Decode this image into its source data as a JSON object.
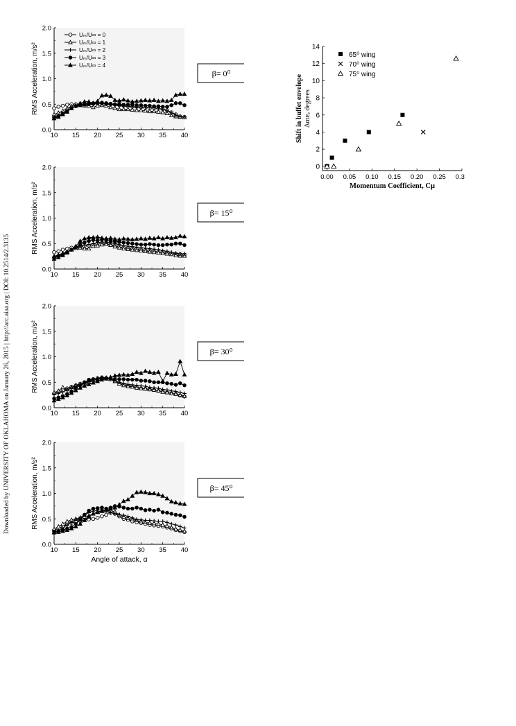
{
  "side_note": "Downloaded by UNIVERSITY OF OKLAHOMA on January 26, 2015 | http://arc.aiaa.org | DOI: 10.2514/2.3135",
  "legend_left": {
    "items": [
      {
        "label": "Uₘ/U∞ = 0",
        "marker": "open-circle"
      },
      {
        "label": "Uₘ/U∞ = 1",
        "marker": "open-triangle"
      },
      {
        "label": "Uₘ/U∞ = 2",
        "marker": "plus"
      },
      {
        "label": "Uₘ/U∞ = 3",
        "marker": "filled-circle"
      },
      {
        "label": "Uₘ/U∞ = 4",
        "marker": "filled-triangle"
      }
    ]
  },
  "panels": [
    {
      "beta": "β= 0⁰"
    },
    {
      "beta": "β= 15⁰"
    },
    {
      "beta": "β= 30⁰"
    },
    {
      "beta": "β= 45⁰"
    }
  ],
  "colors": {
    "ink": "#000000",
    "background": "#ffffff",
    "grid_bg": "#f4f4f4"
  },
  "chart_data": [
    {
      "type": "line",
      "panel": "β= 0⁰",
      "ylabel": "RMS Acceleration, m/s²",
      "xlabel": "",
      "xlim": [
        10,
        40
      ],
      "ylim": [
        0,
        2.0
      ],
      "xticks": [
        10,
        15,
        20,
        25,
        30,
        35,
        40
      ],
      "yticks": [
        "0.0",
        "0.5",
        "1.0",
        "1.5",
        "2.0"
      ],
      "x": [
        10,
        11,
        12,
        13,
        14,
        15,
        16,
        17,
        18,
        19,
        20,
        21,
        22,
        23,
        24,
        25,
        26,
        27,
        28,
        29,
        30,
        31,
        32,
        33,
        34,
        35,
        36,
        37,
        38,
        39,
        40
      ],
      "series": [
        {
          "name": "Uₘ/U∞ = 0",
          "marker": "open-circle",
          "values": [
            0.42,
            0.45,
            0.47,
            0.49,
            0.5,
            0.5,
            0.5,
            0.5,
            0.51,
            0.52,
            0.52,
            0.52,
            0.51,
            0.5,
            0.49,
            0.48,
            0.47,
            0.46,
            0.45,
            0.45,
            0.44,
            0.43,
            0.42,
            0.42,
            0.41,
            0.4,
            0.38,
            0.34,
            0.3,
            0.26,
            0.25
          ]
        },
        {
          "name": "Uₘ/U∞ = 1",
          "marker": "open-triangle",
          "values": [
            0.3,
            0.33,
            0.37,
            0.42,
            0.46,
            0.48,
            0.48,
            0.47,
            0.47,
            0.44,
            0.47,
            0.48,
            0.47,
            0.44,
            0.42,
            0.4,
            0.4,
            0.4,
            0.39,
            0.38,
            0.38,
            0.37,
            0.36,
            0.36,
            0.35,
            0.34,
            0.32,
            0.28,
            0.26,
            0.25,
            0.24
          ]
        },
        {
          "name": "Uₘ/U∞ = 2",
          "marker": "plus",
          "values": [
            0.25,
            0.28,
            0.33,
            0.38,
            0.43,
            0.47,
            0.49,
            0.5,
            0.5,
            0.5,
            0.52,
            0.51,
            0.5,
            0.49,
            0.48,
            0.47,
            0.46,
            0.46,
            0.45,
            0.44,
            0.44,
            0.44,
            0.44,
            0.43,
            0.42,
            0.4,
            0.37,
            0.33,
            0.29,
            0.26,
            0.25
          ]
        },
        {
          "name": "Uₘ/U∞ = 3",
          "marker": "filled-circle",
          "values": [
            0.23,
            0.26,
            0.31,
            0.36,
            0.42,
            0.46,
            0.48,
            0.49,
            0.5,
            0.51,
            0.52,
            0.53,
            0.52,
            0.51,
            0.5,
            0.5,
            0.49,
            0.49,
            0.49,
            0.48,
            0.48,
            0.47,
            0.47,
            0.46,
            0.46,
            0.45,
            0.45,
            0.48,
            0.52,
            0.52,
            0.48
          ]
        },
        {
          "name": "Uₘ/U∞ = 4",
          "marker": "filled-triangle",
          "values": [
            0.22,
            0.25,
            0.3,
            0.35,
            0.42,
            0.47,
            0.52,
            0.55,
            0.55,
            0.52,
            0.56,
            0.67,
            0.68,
            0.66,
            0.58,
            0.57,
            0.59,
            0.57,
            0.55,
            0.56,
            0.57,
            0.58,
            0.57,
            0.58,
            0.56,
            0.57,
            0.56,
            0.58,
            0.68,
            0.7,
            0.7
          ]
        }
      ]
    },
    {
      "type": "line",
      "panel": "β= 15⁰",
      "ylabel": "RMS Acceleration, m/s²",
      "xlabel": "",
      "xlim": [
        10,
        40
      ],
      "ylim": [
        0,
        2.0
      ],
      "xticks": [
        10,
        15,
        20,
        25,
        30,
        35,
        40
      ],
      "yticks": [
        "0.0",
        "0.5",
        "1.0",
        "1.5",
        "2.0"
      ],
      "x": [
        10,
        11,
        12,
        13,
        14,
        15,
        16,
        17,
        18,
        19,
        20,
        21,
        22,
        23,
        24,
        25,
        26,
        27,
        28,
        29,
        30,
        31,
        32,
        33,
        34,
        35,
        36,
        37,
        38,
        39,
        40
      ],
      "series": [
        {
          "name": "Uₘ/U∞ = 0",
          "marker": "open-circle",
          "values": [
            0.33,
            0.35,
            0.38,
            0.4,
            0.42,
            0.43,
            0.44,
            0.45,
            0.46,
            0.48,
            0.5,
            0.51,
            0.5,
            0.48,
            0.46,
            0.44,
            0.42,
            0.41,
            0.4,
            0.39,
            0.38,
            0.37,
            0.36,
            0.35,
            0.34,
            0.33,
            0.32,
            0.31,
            0.3,
            0.29,
            0.28
          ]
        },
        {
          "name": "Uₘ/U∞ = 1",
          "marker": "open-triangle",
          "values": [
            0.25,
            0.28,
            0.31,
            0.34,
            0.38,
            0.41,
            0.42,
            0.4,
            0.4,
            0.45,
            0.46,
            0.48,
            0.49,
            0.47,
            0.44,
            0.42,
            0.4,
            0.39,
            0.38,
            0.37,
            0.36,
            0.35,
            0.34,
            0.33,
            0.32,
            0.31,
            0.3,
            0.29,
            0.27,
            0.26,
            0.26
          ]
        },
        {
          "name": "Uₘ/U∞ = 2",
          "marker": "plus",
          "values": [
            0.24,
            0.27,
            0.3,
            0.34,
            0.38,
            0.42,
            0.45,
            0.47,
            0.48,
            0.5,
            0.52,
            0.53,
            0.53,
            0.52,
            0.5,
            0.48,
            0.46,
            0.45,
            0.44,
            0.43,
            0.42,
            0.41,
            0.4,
            0.39,
            0.38,
            0.36,
            0.35,
            0.33,
            0.31,
            0.3,
            0.3
          ]
        },
        {
          "name": "Uₘ/U∞ = 3",
          "marker": "filled-circle",
          "values": [
            0.22,
            0.25,
            0.28,
            0.33,
            0.38,
            0.43,
            0.48,
            0.52,
            0.55,
            0.57,
            0.56,
            0.58,
            0.57,
            0.55,
            0.54,
            0.53,
            0.52,
            0.51,
            0.5,
            0.49,
            0.48,
            0.48,
            0.49,
            0.48,
            0.47,
            0.47,
            0.48,
            0.48,
            0.5,
            0.5,
            0.47
          ]
        },
        {
          "name": "Uₘ/U∞ = 4",
          "marker": "filled-triangle",
          "values": [
            0.2,
            0.23,
            0.27,
            0.32,
            0.38,
            0.45,
            0.55,
            0.6,
            0.62,
            0.62,
            0.63,
            0.61,
            0.6,
            0.61,
            0.59,
            0.58,
            0.6,
            0.59,
            0.58,
            0.59,
            0.6,
            0.59,
            0.61,
            0.6,
            0.62,
            0.6,
            0.62,
            0.61,
            0.62,
            0.65,
            0.64
          ]
        }
      ]
    },
    {
      "type": "line",
      "panel": "β= 30⁰",
      "ylabel": "RMS Acceleration, m/s²",
      "xlabel": "",
      "xlim": [
        10,
        40
      ],
      "ylim": [
        0,
        2.0
      ],
      "xticks": [
        10,
        15,
        20,
        25,
        30,
        35,
        40
      ],
      "yticks": [
        "0.0",
        "0.5",
        "1.0",
        "1.5",
        "2.0"
      ],
      "x": [
        10,
        11,
        12,
        13,
        14,
        15,
        16,
        17,
        18,
        19,
        20,
        21,
        22,
        23,
        24,
        25,
        26,
        27,
        28,
        29,
        30,
        31,
        32,
        33,
        34,
        35,
        36,
        37,
        38,
        39,
        40
      ],
      "series": [
        {
          "name": "Uₘ/U∞ = 0",
          "marker": "open-circle",
          "values": [
            0.28,
            0.31,
            0.34,
            0.38,
            0.41,
            0.44,
            0.47,
            0.5,
            0.53,
            0.56,
            0.58,
            0.59,
            0.58,
            0.56,
            0.52,
            0.48,
            0.45,
            0.43,
            0.42,
            0.4,
            0.38,
            0.37,
            0.36,
            0.35,
            0.33,
            0.32,
            0.3,
            0.28,
            0.27,
            0.24,
            0.22
          ]
        },
        {
          "name": "Uₘ/U∞ = 1",
          "marker": "open-triangle",
          "values": [
            0.3,
            0.33,
            0.4,
            0.36,
            0.4,
            0.44,
            0.46,
            0.48,
            0.5,
            0.54,
            0.56,
            0.58,
            0.59,
            0.56,
            0.52,
            0.47,
            0.44,
            0.42,
            0.41,
            0.39,
            0.38,
            0.37,
            0.36,
            0.35,
            0.33,
            0.31,
            0.3,
            0.28,
            0.27,
            0.25,
            0.23
          ]
        },
        {
          "name": "Uₘ/U∞ = 2",
          "marker": "plus",
          "values": [
            0.26,
            0.28,
            0.31,
            0.35,
            0.38,
            0.42,
            0.45,
            0.48,
            0.51,
            0.55,
            0.58,
            0.6,
            0.59,
            0.57,
            0.53,
            0.5,
            0.48,
            0.46,
            0.45,
            0.44,
            0.43,
            0.42,
            0.4,
            0.39,
            0.38,
            0.36,
            0.35,
            0.33,
            0.32,
            0.3,
            0.28
          ]
        },
        {
          "name": "Uₘ/U∞ = 3",
          "marker": "filled-circle",
          "values": [
            0.18,
            0.2,
            0.23,
            0.27,
            0.32,
            0.38,
            0.44,
            0.5,
            0.55,
            0.56,
            0.56,
            0.57,
            0.57,
            0.58,
            0.56,
            0.56,
            0.56,
            0.55,
            0.55,
            0.55,
            0.53,
            0.53,
            0.52,
            0.5,
            0.5,
            0.5,
            0.48,
            0.47,
            0.45,
            0.48,
            0.44
          ]
        },
        {
          "name": "Uₘ/U∞ = 4",
          "marker": "filled-triangle",
          "values": [
            0.14,
            0.17,
            0.2,
            0.24,
            0.29,
            0.34,
            0.39,
            0.43,
            0.46,
            0.49,
            0.52,
            0.55,
            0.57,
            0.6,
            0.63,
            0.64,
            0.65,
            0.64,
            0.66,
            0.7,
            0.68,
            0.72,
            0.7,
            0.68,
            0.7,
            0.52,
            0.68,
            0.65,
            0.66,
            0.91,
            0.65
          ]
        }
      ]
    },
    {
      "type": "line",
      "panel": "β= 45⁰",
      "ylabel": "RMS Acceleration, m/s²",
      "xlabel": "Angle of attack, α",
      "xlim": [
        10,
        40
      ],
      "ylim": [
        0,
        2.0
      ],
      "xticks": [
        10,
        15,
        20,
        25,
        30,
        35,
        40
      ],
      "yticks": [
        "0.0",
        "0.5",
        "1.0",
        "1.5",
        "2.0"
      ],
      "x": [
        10,
        11,
        12,
        13,
        14,
        15,
        16,
        17,
        18,
        19,
        20,
        21,
        22,
        23,
        24,
        25,
        26,
        27,
        28,
        29,
        30,
        31,
        32,
        33,
        34,
        35,
        36,
        37,
        38,
        39,
        40
      ],
      "series": [
        {
          "name": "Uₘ/U∞ = 0",
          "marker": "open-circle",
          "values": [
            0.28,
            0.31,
            0.35,
            0.39,
            0.42,
            0.44,
            0.46,
            0.48,
            0.49,
            0.5,
            0.52,
            0.55,
            0.58,
            0.62,
            0.6,
            0.55,
            0.5,
            0.48,
            0.45,
            0.43,
            0.42,
            0.4,
            0.38,
            0.37,
            0.36,
            0.35,
            0.33,
            0.31,
            0.28,
            0.26,
            0.24
          ]
        },
        {
          "name": "Uₘ/U∞ = 1",
          "marker": "open-triangle",
          "values": [
            0.3,
            0.35,
            0.4,
            0.45,
            0.48,
            0.5,
            0.52,
            0.54,
            0.56,
            0.6,
            0.63,
            0.65,
            0.66,
            0.66,
            0.64,
            0.58,
            0.54,
            0.51,
            0.49,
            0.47,
            0.45,
            0.43,
            0.42,
            0.41,
            0.4,
            0.38,
            0.36,
            0.33,
            0.3,
            0.28,
            0.26
          ]
        },
        {
          "name": "Uₘ/U∞ = 2",
          "marker": "plus",
          "values": [
            0.22,
            0.27,
            0.32,
            0.38,
            0.43,
            0.48,
            0.53,
            0.58,
            0.62,
            0.65,
            0.67,
            0.68,
            0.66,
            0.62,
            0.6,
            0.58,
            0.57,
            0.55,
            0.52,
            0.49,
            0.48,
            0.47,
            0.47,
            0.46,
            0.45,
            0.45,
            0.43,
            0.4,
            0.38,
            0.35,
            0.32
          ]
        },
        {
          "name": "Uₘ/U∞ = 3",
          "marker": "filled-circle",
          "values": [
            0.25,
            0.26,
            0.28,
            0.31,
            0.34,
            0.4,
            0.48,
            0.58,
            0.66,
            0.7,
            0.71,
            0.72,
            0.7,
            0.72,
            0.75,
            0.74,
            0.72,
            0.7,
            0.7,
            0.72,
            0.7,
            0.67,
            0.68,
            0.66,
            0.68,
            0.63,
            0.62,
            0.6,
            0.58,
            0.57,
            0.54
          ]
        },
        {
          "name": "Uₘ/U∞ = 4",
          "marker": "filled-triangle",
          "values": [
            0.23,
            0.24,
            0.26,
            0.28,
            0.31,
            0.35,
            0.4,
            0.47,
            0.54,
            0.6,
            0.64,
            0.66,
            0.68,
            0.7,
            0.72,
            0.78,
            0.85,
            0.88,
            0.95,
            1.02,
            1.03,
            1.02,
            1.0,
            1.0,
            0.98,
            0.95,
            0.9,
            0.84,
            0.82,
            0.8,
            0.79
          ]
        }
      ]
    },
    {
      "type": "scatter",
      "title": "",
      "xlabel": "Momentum Coefficient, Cμ",
      "ylabel": "Shift in buffet envelope",
      "ylabel2": "Δαᵫₑ degrees",
      "xlim": [
        -0.01,
        0.3
      ],
      "ylim": [
        -0.5,
        14
      ],
      "xticks": [
        "0.00",
        "0.05",
        "0.10",
        "0.15",
        "0.20",
        "0.25",
        "0.30"
      ],
      "yticks": [
        "0",
        "2",
        "4",
        "6",
        "8",
        "10",
        "12",
        "14"
      ],
      "series": [
        {
          "name": "65⁰ wing",
          "marker": "filled-square",
          "x": [
            0.0,
            0.011,
            0.04,
            0.093,
            0.168
          ],
          "y": [
            0,
            1,
            3,
            4,
            6
          ]
        },
        {
          "name": "70⁰ wing",
          "marker": "cross",
          "x": [
            0.0,
            0.214
          ],
          "y": [
            0,
            4
          ]
        },
        {
          "name": "75⁰ wing",
          "marker": "open-triangle",
          "x": [
            0.0,
            0.015,
            0.07,
            0.16,
            0.287
          ],
          "y": [
            0,
            0,
            2,
            5,
            12.6
          ]
        }
      ]
    }
  ]
}
